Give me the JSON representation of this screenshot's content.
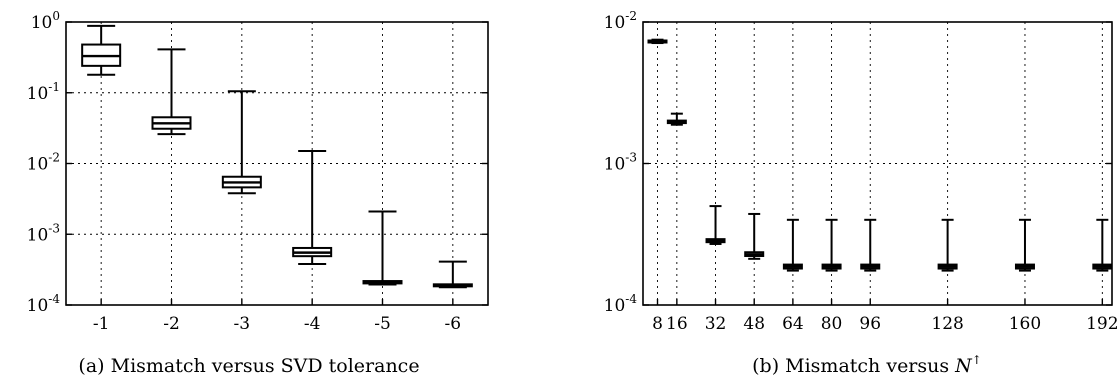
{
  "chart_data": [
    {
      "type": "box",
      "caption": "(a) Mismatch versus SVD tolerance",
      "xlabel": "",
      "ylabel": "",
      "yscale": "log",
      "ylim": [
        0.0001,
        1
      ],
      "y_tick_labels": [
        {
          "value": 1,
          "base": "10",
          "exp": "0"
        },
        {
          "value": 0.1,
          "base": "10",
          "exp": "-1"
        },
        {
          "value": 0.01,
          "base": "10",
          "exp": "-2"
        },
        {
          "value": 0.001,
          "base": "10",
          "exp": "-3"
        },
        {
          "value": 0.0001,
          "base": "10",
          "exp": "-4"
        }
      ],
      "grid": true,
      "categories": [
        "-1",
        "-2",
        "-3",
        "-4",
        "-5",
        "-6"
      ],
      "boxes": [
        {
          "whisker_low": 0.18,
          "q1": 0.24,
          "median": 0.33,
          "q3": 0.48,
          "whisker_high": 0.88
        },
        {
          "whisker_low": 0.026,
          "q1": 0.031,
          "median": 0.037,
          "q3": 0.045,
          "whisker_high": 0.41
        },
        {
          "whisker_low": 0.0038,
          "q1": 0.0046,
          "median": 0.0054,
          "q3": 0.0065,
          "whisker_high": 0.105
        },
        {
          "whisker_low": 0.00038,
          "q1": 0.00049,
          "median": 0.00055,
          "q3": 0.00064,
          "whisker_high": 0.015
        },
        {
          "whisker_low": 0.000195,
          "q1": 0.000202,
          "median": 0.00021,
          "q3": 0.000218,
          "whisker_high": 0.0021
        },
        {
          "whisker_low": 0.000178,
          "q1": 0.000184,
          "median": 0.00019,
          "q3": 0.000196,
          "whisker_high": 0.00041
        }
      ]
    },
    {
      "type": "box",
      "caption_text": "(b) Mismatch versus ",
      "caption_var": "N",
      "caption_sup": "↑",
      "xlabel": "",
      "ylabel": "",
      "yscale": "log",
      "ylim": [
        0.0001,
        0.01
      ],
      "y_tick_labels": [
        {
          "value": 0.01,
          "base": "10",
          "exp": "-2"
        },
        {
          "value": 0.001,
          "base": "10",
          "exp": "-3"
        },
        {
          "value": 0.0001,
          "base": "10",
          "exp": "-4"
        }
      ],
      "grid": true,
      "x_positions": [
        8,
        16,
        32,
        48,
        64,
        80,
        96,
        128,
        160,
        192
      ],
      "x_tick_labels": [
        "8",
        "16",
        "32",
        "48",
        "64",
        "80",
        "96",
        "128",
        "160",
        "192"
      ],
      "xlim": [
        2,
        196
      ],
      "boxes": [
        {
          "x": 8,
          "whisker_low": 0.0071,
          "q1": 0.0072,
          "median": 0.0073,
          "q3": 0.0074,
          "whisker_high": 0.0075
        },
        {
          "x": 16,
          "whisker_low": 0.00188,
          "q1": 0.00193,
          "median": 0.00197,
          "q3": 0.00201,
          "whisker_high": 0.00225
        },
        {
          "x": 32,
          "whisker_low": 0.00027,
          "q1": 0.000278,
          "median": 0.000285,
          "q3": 0.000292,
          "whisker_high": 0.0005
        },
        {
          "x": 48,
          "whisker_low": 0.000212,
          "q1": 0.000222,
          "median": 0.000228,
          "q3": 0.000236,
          "whisker_high": 0.00044
        },
        {
          "x": 64,
          "whisker_low": 0.000175,
          "q1": 0.000181,
          "median": 0.000187,
          "q3": 0.000193,
          "whisker_high": 0.0004
        },
        {
          "x": 80,
          "whisker_low": 0.000175,
          "q1": 0.000181,
          "median": 0.000187,
          "q3": 0.000193,
          "whisker_high": 0.0004
        },
        {
          "x": 96,
          "whisker_low": 0.000175,
          "q1": 0.000181,
          "median": 0.000187,
          "q3": 0.000193,
          "whisker_high": 0.0004
        },
        {
          "x": 128,
          "whisker_low": 0.000175,
          "q1": 0.000181,
          "median": 0.000187,
          "q3": 0.000193,
          "whisker_high": 0.0004
        },
        {
          "x": 160,
          "whisker_low": 0.000175,
          "q1": 0.000181,
          "median": 0.000187,
          "q3": 0.000193,
          "whisker_high": 0.0004
        },
        {
          "x": 192,
          "whisker_low": 0.000175,
          "q1": 0.000181,
          "median": 0.000187,
          "q3": 0.000193,
          "whisker_high": 0.0004
        }
      ]
    }
  ]
}
